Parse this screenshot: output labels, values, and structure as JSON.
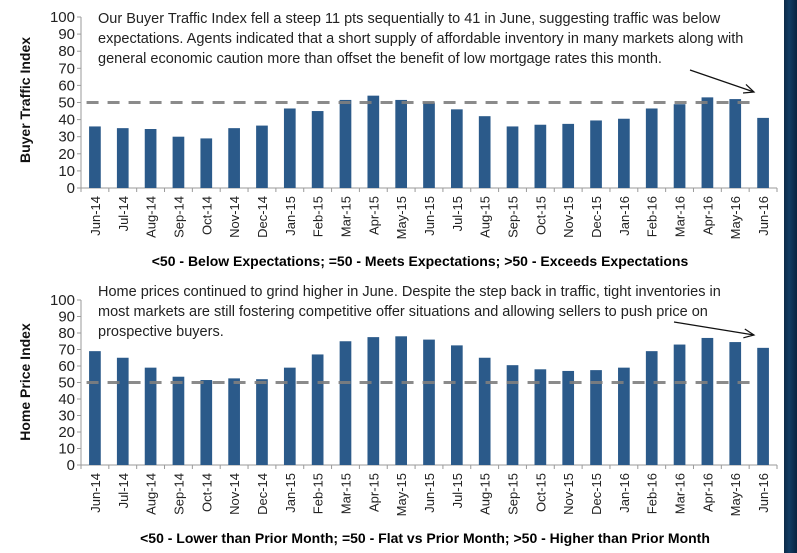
{
  "colors": {
    "bar": "#2b5a8a",
    "reference_line": "#7f7f7f",
    "axis": "#9a9a9a",
    "frame": "#123c63"
  },
  "chart_data": [
    {
      "type": "bar",
      "ylabel": "Buyer Traffic Index",
      "xlabel": "<50 - Below Expectations; =50 - Meets Expectations; >50 - Exceeds Expectations",
      "ylim": [
        0,
        100
      ],
      "yticks": [
        "0",
        "10",
        "20",
        "30",
        "40",
        "50",
        "60",
        "70",
        "80",
        "90",
        "100"
      ],
      "reference_line": 50,
      "annotation": [
        "Our Buyer Traffic Index fell a steep 11 pts sequentially to 41 in June, suggesting traffic was below",
        "expectations. Agents indicated that a short supply of affordable inventory in many markets along with",
        "general economic caution more than offset the benefit of low mortgage rates this month."
      ],
      "categories": [
        "Jun-14",
        "Jul-14",
        "Aug-14",
        "Sep-14",
        "Oct-14",
        "Nov-14",
        "Dec-14",
        "Jan-15",
        "Feb-15",
        "Mar-15",
        "Apr-15",
        "May-15",
        "Jun-15",
        "Jul-15",
        "Aug-15",
        "Sep-15",
        "Oct-15",
        "Nov-15",
        "Dec-15",
        "Jan-16",
        "Feb-16",
        "Mar-16",
        "Apr-16",
        "May-16",
        "Jun-16"
      ],
      "values": [
        36,
        35,
        34.5,
        30,
        29,
        35,
        36.5,
        46.5,
        45,
        51.5,
        54,
        51.5,
        50,
        46,
        42,
        36,
        37,
        37.5,
        39.5,
        40.5,
        46.5,
        49,
        53,
        52,
        41
      ]
    },
    {
      "type": "bar",
      "ylabel": "Home Price Index",
      "xlabel": "<50 - Lower than Prior Month; =50 - Flat vs Prior Month; >50 - Higher than Prior Month",
      "ylim": [
        0,
        100
      ],
      "yticks": [
        "0",
        "10",
        "20",
        "30",
        "40",
        "50",
        "60",
        "70",
        "80",
        "90",
        "100"
      ],
      "reference_line": 50,
      "annotation": [
        "Home prices continued to grind higher in June. Despite the step back in traffic, tight inventories in",
        "most markets are still fostering competitive offer situations and allowing sellers to push price on",
        "prospective buyers."
      ],
      "categories": [
        "Jun-14",
        "Jul-14",
        "Aug-14",
        "Sep-14",
        "Oct-14",
        "Nov-14",
        "Dec-14",
        "Jan-15",
        "Feb-15",
        "Mar-15",
        "Apr-15",
        "May-15",
        "Jun-15",
        "Jul-15",
        "Aug-15",
        "Sep-15",
        "Oct-15",
        "Nov-15",
        "Dec-15",
        "Jan-16",
        "Feb-16",
        "Mar-16",
        "Apr-16",
        "May-16",
        "Jun-16"
      ],
      "values": [
        69,
        65,
        59,
        53.5,
        51.5,
        52.5,
        52,
        59,
        67,
        75,
        77.5,
        78,
        76,
        72.5,
        65,
        60.5,
        58,
        57,
        57.5,
        59,
        69,
        73,
        77,
        74.5,
        71
      ]
    }
  ]
}
